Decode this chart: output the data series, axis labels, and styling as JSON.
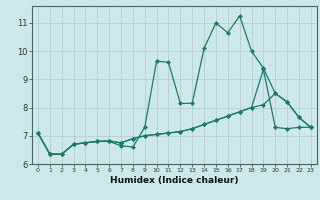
{
  "xlabel": "Humidex (Indice chaleur)",
  "bg_color": "#cce8e8",
  "grid_color": "#b8cccc",
  "line_color": "#1a7a6e",
  "xlim": [
    -0.5,
    23.5
  ],
  "ylim": [
    6.0,
    11.6
  ],
  "yticks": [
    6,
    7,
    8,
    9,
    10,
    11
  ],
  "xticks": [
    0,
    1,
    2,
    3,
    4,
    5,
    6,
    7,
    8,
    9,
    10,
    11,
    12,
    13,
    14,
    15,
    16,
    17,
    18,
    19,
    20,
    21,
    22,
    23
  ],
  "line1_x": [
    0,
    1,
    2,
    3,
    4,
    5,
    6,
    7,
    8,
    9,
    10,
    11,
    12,
    13,
    14,
    15,
    16,
    17,
    18,
    19,
    20,
    21,
    22,
    23
  ],
  "line1_y": [
    7.1,
    6.35,
    6.35,
    6.7,
    6.75,
    6.8,
    6.8,
    6.65,
    6.6,
    7.3,
    9.65,
    9.6,
    8.15,
    8.15,
    10.1,
    11.0,
    10.65,
    11.25,
    10.0,
    9.4,
    8.5,
    8.2,
    7.65,
    7.3
  ],
  "line2_x": [
    0,
    1,
    2,
    3,
    4,
    5,
    6,
    7,
    8,
    9,
    10,
    11,
    12,
    13,
    14,
    15,
    16,
    17,
    18,
    19,
    20,
    21,
    22,
    23
  ],
  "line2_y": [
    7.1,
    6.35,
    6.35,
    6.7,
    6.75,
    6.8,
    6.82,
    6.75,
    6.9,
    7.0,
    7.05,
    7.1,
    7.15,
    7.25,
    7.4,
    7.55,
    7.7,
    7.85,
    8.0,
    9.35,
    7.3,
    7.25,
    7.3,
    7.3
  ],
  "line3_x": [
    0,
    1,
    2,
    3,
    4,
    5,
    6,
    7,
    8,
    9,
    10,
    11,
    12,
    13,
    14,
    15,
    16,
    17,
    18,
    19,
    20,
    21,
    22,
    23
  ],
  "line3_y": [
    7.1,
    6.35,
    6.35,
    6.7,
    6.75,
    6.8,
    6.82,
    6.75,
    6.9,
    7.0,
    7.05,
    7.1,
    7.15,
    7.25,
    7.4,
    7.55,
    7.7,
    7.85,
    8.0,
    8.1,
    8.5,
    8.2,
    7.65,
    7.3
  ]
}
